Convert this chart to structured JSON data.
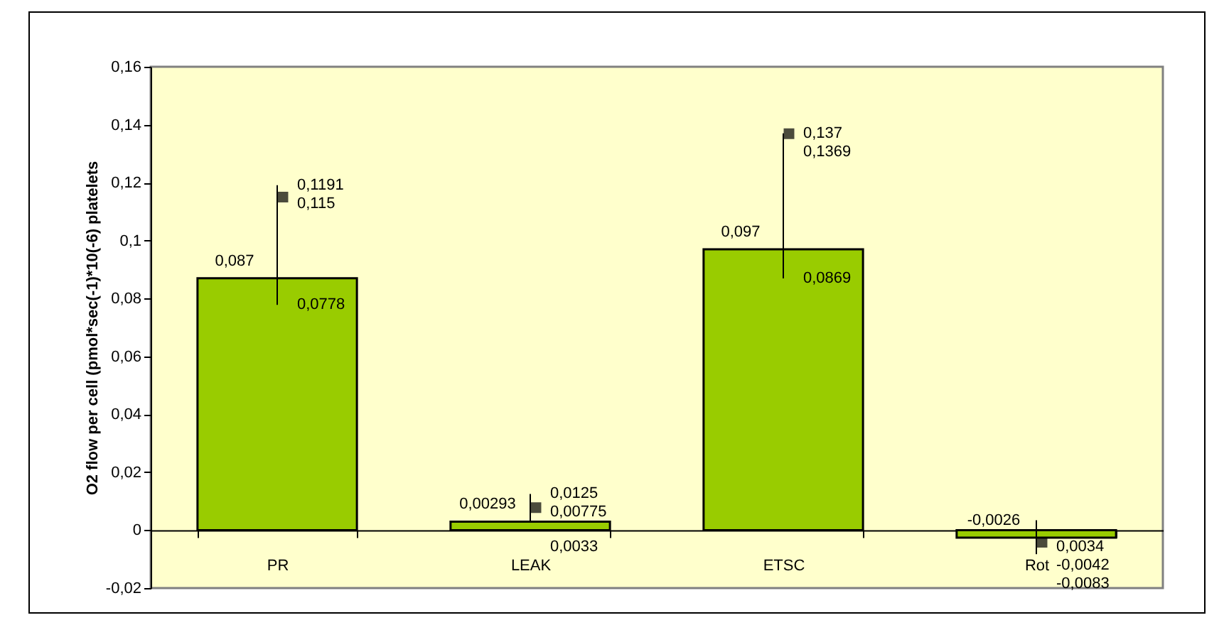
{
  "chart_data": {
    "type": "bar",
    "ylabel": "O2 flow per cell (pmol*sec(-1)*10(-6) platelets",
    "categories": [
      "PR",
      "LEAK",
      "ETSC",
      "Rot"
    ],
    "ylim": [
      -0.02,
      0.16
    ],
    "yticks": [
      {
        "value": -0.02,
        "label": "-0,02"
      },
      {
        "value": 0,
        "label": "0"
      },
      {
        "value": 0.02,
        "label": "0,02"
      },
      {
        "value": 0.04,
        "label": "0,04"
      },
      {
        "value": 0.06,
        "label": "0,06"
      },
      {
        "value": 0.08,
        "label": "0,08"
      },
      {
        "value": 0.1,
        "label": "0,1"
      },
      {
        "value": 0.12,
        "label": "0,12"
      },
      {
        "value": 0.14,
        "label": "0,14"
      },
      {
        "value": 0.16,
        "label": "0,16"
      }
    ],
    "series": [
      {
        "color": "#99cc00",
        "values": [
          0.087,
          0.00293,
          0.097,
          -0.0026
        ],
        "value_labels": [
          "0,087",
          "0,00293",
          "0,097",
          "-0,0026"
        ],
        "errors": [
          [
            0.0778,
            0.1191
          ],
          [
            0.0033,
            0.0125
          ],
          [
            0.0869,
            0.137
          ],
          [
            -0.0083,
            0.0034
          ]
        ]
      },
      {
        "type": "scatter",
        "marker": "square",
        "color": "#000000",
        "x": [
          "PR",
          "LEAK",
          "ETSC",
          "Rot"
        ],
        "values": [
          0.115,
          0.00775,
          0.1369,
          -0.0042
        ],
        "value_labels": [
          "0,115",
          "0,00775",
          "0,1369",
          "-0,0042"
        ]
      }
    ],
    "annotations": [
      {
        "text": "0,1191",
        "x": "PR",
        "y": 0.1191
      },
      {
        "text": "0,0778",
        "x": "PR",
        "y": 0.0778
      },
      {
        "text": "0,0125",
        "x": "LEAK",
        "y": 0.0125
      },
      {
        "text": "0,0033",
        "x": "LEAK",
        "y": 0.0033
      },
      {
        "text": "0,137",
        "x": "ETSC",
        "y": 0.137
      },
      {
        "text": "0,0869",
        "x": "ETSC",
        "y": 0.0869
      },
      {
        "text": "0,0034",
        "x": "Rot",
        "y": 0.0034
      },
      {
        "text": "-0,0083",
        "x": "Rot",
        "y": -0.0083
      }
    ]
  }
}
